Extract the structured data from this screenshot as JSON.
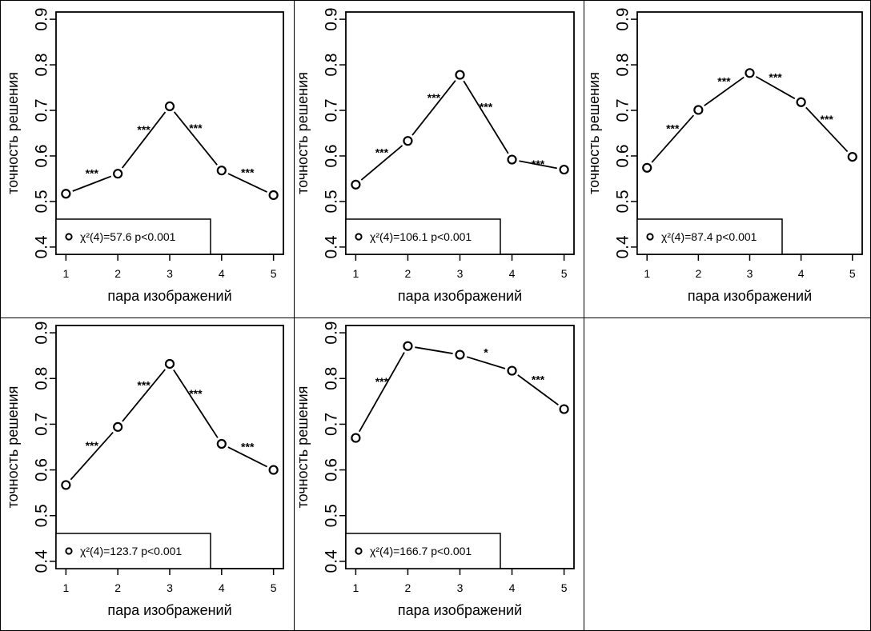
{
  "chart_data": [
    {
      "type": "line",
      "x": [
        1,
        2,
        3,
        4,
        5
      ],
      "values": [
        0.517,
        0.561,
        0.709,
        0.568,
        0.514
      ],
      "xlabel": "пара изображений",
      "ylabel": "точность решения",
      "xticks": [
        "1",
        "2",
        "3",
        "4",
        "5"
      ],
      "yticks": [
        "0.4",
        "0.5",
        "0.6",
        "0.7",
        "0.8",
        "0.9"
      ],
      "ylim": [
        0.4,
        0.9
      ],
      "significance": [
        {
          "between": [
            1,
            2
          ],
          "label": "***",
          "side": "above"
        },
        {
          "between": [
            2,
            3
          ],
          "label": "***",
          "side": "above"
        },
        {
          "between": [
            3,
            4
          ],
          "label": "***",
          "side": "above"
        },
        {
          "between": [
            4,
            5
          ],
          "label": "***",
          "side": "above"
        }
      ],
      "legend": "χ²(4)=57.6 p<0.001"
    },
    {
      "type": "line",
      "x": [
        1,
        2,
        3,
        4,
        5
      ],
      "values": [
        0.537,
        0.633,
        0.778,
        0.592,
        0.57
      ],
      "xlabel": "пара изображений",
      "ylabel": "точность решения",
      "xticks": [
        "1",
        "2",
        "3",
        "4",
        "5"
      ],
      "yticks": [
        "0.4",
        "0.5",
        "0.6",
        "0.7",
        "0.8",
        "0.9"
      ],
      "ylim": [
        0.4,
        0.9
      ],
      "significance": [
        {
          "between": [
            2,
            1
          ],
          "label": "***",
          "side": "above"
        },
        {
          "between": [
            2,
            3
          ],
          "label": "***",
          "side": "above"
        },
        {
          "between": [
            3,
            4
          ],
          "label": "***",
          "side": "above"
        },
        {
          "between": [
            4,
            5
          ],
          "label": "***",
          "side": "on-line"
        }
      ],
      "legend": "χ²(4)=106.1 p<0.001"
    },
    {
      "type": "line",
      "x": [
        1,
        2,
        3,
        4,
        5
      ],
      "values": [
        0.574,
        0.701,
        0.782,
        0.718,
        0.598
      ],
      "xlabel": "пара изображений",
      "ylabel": "точность решения",
      "xticks": [
        "1",
        "2",
        "3",
        "4",
        "5"
      ],
      "yticks": [
        "0.4",
        "0.5",
        "0.6",
        "0.7",
        "0.8",
        "0.9"
      ],
      "ylim": [
        0.4,
        0.9
      ],
      "significance": [
        {
          "between": [
            1,
            2
          ],
          "label": "***",
          "side": "above"
        },
        {
          "between": [
            2,
            3
          ],
          "label": "***",
          "side": "above"
        },
        {
          "between": [
            3,
            4
          ],
          "label": "***",
          "side": "above"
        },
        {
          "between": [
            4,
            5
          ],
          "label": "***",
          "side": "above"
        }
      ],
      "legend": "χ²(4)=87.4 p<0.001"
    },
    {
      "type": "line",
      "x": [
        1,
        2,
        3,
        4,
        5
      ],
      "values": [
        0.567,
        0.694,
        0.832,
        0.657,
        0.6
      ],
      "xlabel": "пара изображений",
      "ylabel": "точность решения",
      "xticks": [
        "1",
        "2",
        "3",
        "4",
        "5"
      ],
      "yticks": [
        "0.4",
        "0.5",
        "0.6",
        "0.7",
        "0.8",
        "0.9"
      ],
      "ylim": [
        0.4,
        0.9
      ],
      "significance": [
        {
          "between": [
            1,
            2
          ],
          "label": "***",
          "side": "above"
        },
        {
          "between": [
            2,
            3
          ],
          "label": "***",
          "side": "above"
        },
        {
          "between": [
            3,
            4
          ],
          "label": "***",
          "side": "above"
        },
        {
          "between": [
            4,
            5
          ],
          "label": "***",
          "side": "above"
        }
      ],
      "legend": "χ²(4)=123.7 p<0.001"
    },
    {
      "type": "line",
      "x": [
        1,
        2,
        3,
        4,
        5
      ],
      "values": [
        0.67,
        0.871,
        0.852,
        0.817,
        0.733
      ],
      "xlabel": "пара изображений",
      "ylabel": "точность решения",
      "xticks": [
        "1",
        "2",
        "3",
        "4",
        "5"
      ],
      "yticks": [
        "0.4",
        "0.5",
        "0.6",
        "0.7",
        "0.8",
        "0.9"
      ],
      "ylim": [
        0.4,
        0.9
      ],
      "significance": [
        {
          "between": [
            1,
            2
          ],
          "label": "***",
          "side": "above"
        },
        {
          "between": [
            3,
            4
          ],
          "label": "*",
          "side": "above"
        },
        {
          "between": [
            4,
            5
          ],
          "label": "***",
          "side": "above"
        }
      ],
      "legend": "χ²(4)=166.7 p<0.001"
    }
  ]
}
